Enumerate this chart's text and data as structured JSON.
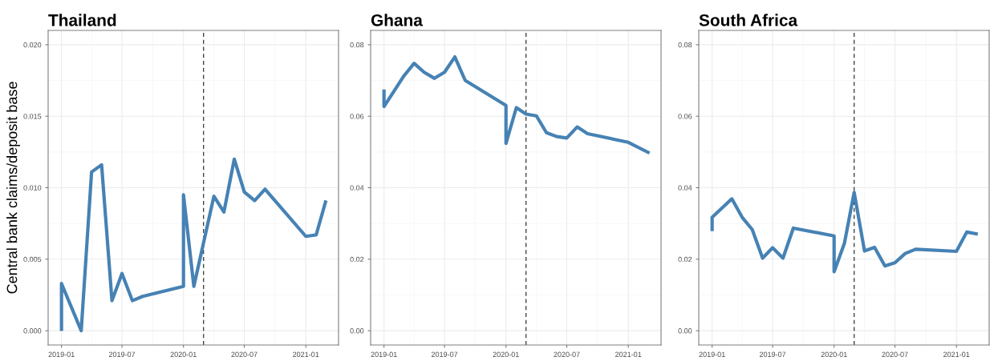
{
  "chart_data": [
    {
      "type": "line",
      "title": "Thailand",
      "ylabel": "Central bank claims/deposit base",
      "grid": true,
      "line_style": "solid",
      "x": [
        "2019-01-01",
        "2019-01-01",
        "2019-03-01",
        "2019-04-01",
        "2019-05-01",
        "2019-06-01",
        "2019-07-01",
        "2019-08-01",
        "2019-09-01",
        "2020-01-01",
        "2020-01-01",
        "2020-02-01",
        "2020-04-01",
        "2020-05-01",
        "2020-06-01",
        "2020-07-01",
        "2020-08-01",
        "2020-09-01",
        "2021-01-01",
        "2021-02-01",
        "2021-03-01"
      ],
      "series": [
        {
          "color": "#4682b4",
          "values": [
            0.0001,
            0.0033,
            0.0,
            0.0111,
            0.0116,
            0.0021,
            0.004,
            0.0021,
            0.0024,
            0.0031,
            0.0095,
            0.0031,
            0.0094,
            0.0083,
            0.012,
            0.0097,
            0.0091,
            0.0099,
            0.0066,
            0.0067,
            0.009
          ]
        }
      ],
      "xlim": [
        "2018-11-22",
        "2021-04-09"
      ],
      "xticks": [
        {
          "value": "2019-01-01",
          "label": "2019-01"
        },
        {
          "value": "2019-07-01",
          "label": "2019-07"
        },
        {
          "value": "2020-01-01",
          "label": "2020-01"
        },
        {
          "value": "2020-07-01",
          "label": "2020-07"
        },
        {
          "value": "2021-01-01",
          "label": "2021-01"
        }
      ],
      "ylim": [
        -0.001,
        0.021
      ],
      "yticks": [
        {
          "value": 0,
          "label": "0.000"
        },
        {
          "value": 0.005,
          "label": "0.005"
        },
        {
          "value": 0.01,
          "label": "0.010"
        },
        {
          "value": 0.015,
          "label": "0.015"
        },
        {
          "value": 0.02,
          "label": "0.020"
        }
      ],
      "ref_lines": [
        {
          "axis": "x",
          "value": "2020-03-01",
          "color": "#333333",
          "line_style": "dashed"
        }
      ]
    },
    {
      "type": "line",
      "title": "Ghana",
      "grid": true,
      "line_style": "solid",
      "x": [
        "2019-01-01",
        "2019-01-01",
        "2019-03-01",
        "2019-04-01",
        "2019-05-01",
        "2019-06-01",
        "2019-07-01",
        "2019-08-01",
        "2019-09-01",
        "2020-01-01",
        "2020-01-01",
        "2020-02-01",
        "2020-03-01",
        "2020-04-01",
        "2020-05-01",
        "2020-06-01",
        "2020-07-01",
        "2020-08-01",
        "2020-09-01",
        "2021-01-01",
        "2021-03-01"
      ],
      "series": [
        {
          "color": "#4682b4",
          "values": [
            0.067,
            0.0627,
            0.0712,
            0.0748,
            0.0723,
            0.0706,
            0.0723,
            0.0766,
            0.07,
            0.063,
            0.0524,
            0.0624,
            0.0606,
            0.0601,
            0.0554,
            0.0543,
            0.0539,
            0.057,
            0.0551,
            0.0527,
            0.0499
          ]
        }
      ],
      "xlim": [
        "2018-11-22",
        "2021-04-09"
      ],
      "xticks": [
        {
          "value": "2019-01-01",
          "label": "2019-01"
        },
        {
          "value": "2019-07-01",
          "label": "2019-07"
        },
        {
          "value": "2020-01-01",
          "label": "2020-01"
        },
        {
          "value": "2020-07-01",
          "label": "2020-07"
        },
        {
          "value": "2021-01-01",
          "label": "2021-01"
        }
      ],
      "ylim": [
        -0.004,
        0.084
      ],
      "yticks": [
        {
          "value": 0,
          "label": "0.00"
        },
        {
          "value": 0.02,
          "label": "0.02"
        },
        {
          "value": 0.04,
          "label": "0.04"
        },
        {
          "value": 0.06,
          "label": "0.06"
        },
        {
          "value": 0.08,
          "label": "0.08"
        }
      ],
      "ref_lines": [
        {
          "axis": "x",
          "value": "2020-03-01",
          "color": "#333333",
          "line_style": "dashed"
        }
      ]
    },
    {
      "type": "line",
      "title": "South Africa",
      "grid": true,
      "line_style": "solid",
      "x": [
        "2019-01-01",
        "2019-01-01",
        "2019-03-01",
        "2019-04-01",
        "2019-05-01",
        "2019-06-01",
        "2019-07-01",
        "2019-08-01",
        "2019-09-01",
        "2020-01-01",
        "2020-01-01",
        "2020-02-01",
        "2020-03-01",
        "2020-04-01",
        "2020-05-01",
        "2020-06-01",
        "2020-07-01",
        "2020-08-01",
        "2020-09-01",
        "2021-01-01",
        "2021-02-01",
        "2021-03-01"
      ],
      "series": [
        {
          "color": "#4682b4",
          "values": [
            0.0283,
            0.0317,
            0.0369,
            0.0317,
            0.0283,
            0.0203,
            0.0232,
            0.0203,
            0.0287,
            0.0265,
            0.0165,
            0.0245,
            0.0387,
            0.0223,
            0.0233,
            0.0181,
            0.019,
            0.0216,
            0.0228,
            0.0222,
            0.0276,
            0.0271
          ]
        }
      ],
      "xlim": [
        "2018-11-22",
        "2021-04-09"
      ],
      "xticks": [
        {
          "value": "2019-01-01",
          "label": "2019-01"
        },
        {
          "value": "2019-07-01",
          "label": "2019-07"
        },
        {
          "value": "2020-01-01",
          "label": "2020-01"
        },
        {
          "value": "2020-07-01",
          "label": "2020-07"
        },
        {
          "value": "2021-01-01",
          "label": "2021-01"
        }
      ],
      "ylim": [
        -0.004,
        0.084
      ],
      "yticks": [
        {
          "value": 0,
          "label": "0.00"
        },
        {
          "value": 0.02,
          "label": "0.02"
        },
        {
          "value": 0.04,
          "label": "0.04"
        },
        {
          "value": 0.06,
          "label": "0.06"
        },
        {
          "value": 0.08,
          "label": "0.08"
        }
      ],
      "ref_lines": [
        {
          "axis": "x",
          "value": "2020-03-01",
          "color": "#333333",
          "line_style": "dashed"
        }
      ]
    }
  ]
}
